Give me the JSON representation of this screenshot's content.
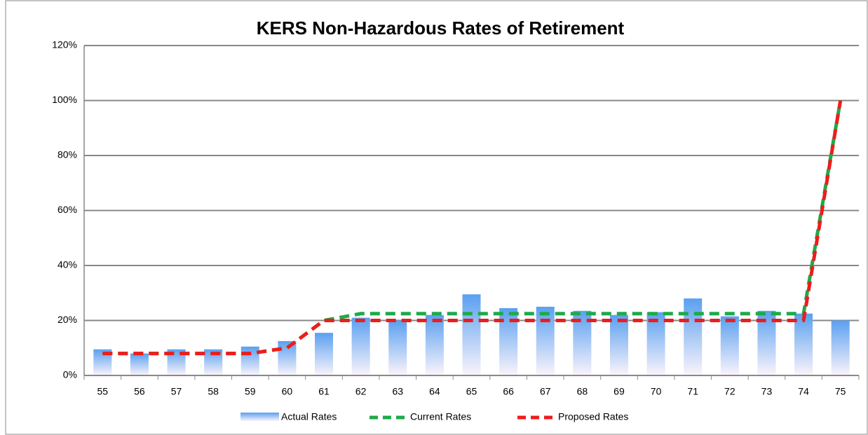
{
  "chart_data": {
    "type": "bar_line",
    "title": "KERS Non-Hazardous Rates of Retirement",
    "categories": [
      "55",
      "56",
      "57",
      "58",
      "59",
      "60",
      "61",
      "62",
      "63",
      "64",
      "65",
      "66",
      "67",
      "68",
      "69",
      "70",
      "71",
      "72",
      "73",
      "74",
      "75"
    ],
    "series": [
      {
        "name": "Actual Rates",
        "type": "bar",
        "color": "#5aa0f0",
        "values": [
          9.5,
          8,
          9.5,
          9.5,
          10.5,
          12.5,
          15.5,
          21,
          20,
          22,
          29.5,
          24.5,
          25,
          23.5,
          22,
          23,
          28,
          21.5,
          23.5,
          22.5,
          20
        ]
      },
      {
        "name": "Current Rates",
        "type": "line",
        "color": "#1daa4a",
        "values": [
          8,
          8,
          8,
          8,
          8,
          10,
          20,
          22.5,
          22.5,
          22.5,
          22.5,
          22.5,
          22.5,
          22.5,
          22.5,
          22.5,
          22.5,
          22.5,
          22.5,
          22.5,
          100
        ]
      },
      {
        "name": "Proposed Rates",
        "type": "line",
        "color": "#ee1c1c",
        "values": [
          8,
          8,
          8,
          8,
          8,
          10,
          20,
          20,
          20,
          20,
          20,
          20,
          20,
          20,
          20,
          20,
          20,
          20,
          20,
          20,
          100
        ]
      }
    ],
    "ylim": [
      0,
      120
    ],
    "yticks": [
      {
        "value": 0,
        "label": "0%"
      },
      {
        "value": 20,
        "label": "20%"
      },
      {
        "value": 40,
        "label": "40%"
      },
      {
        "value": 60,
        "label": "60%"
      },
      {
        "value": 80,
        "label": "80%"
      },
      {
        "value": 100,
        "label": "100%"
      },
      {
        "value": 120,
        "label": "120%"
      }
    ],
    "grid": true,
    "legend": "bottom"
  }
}
